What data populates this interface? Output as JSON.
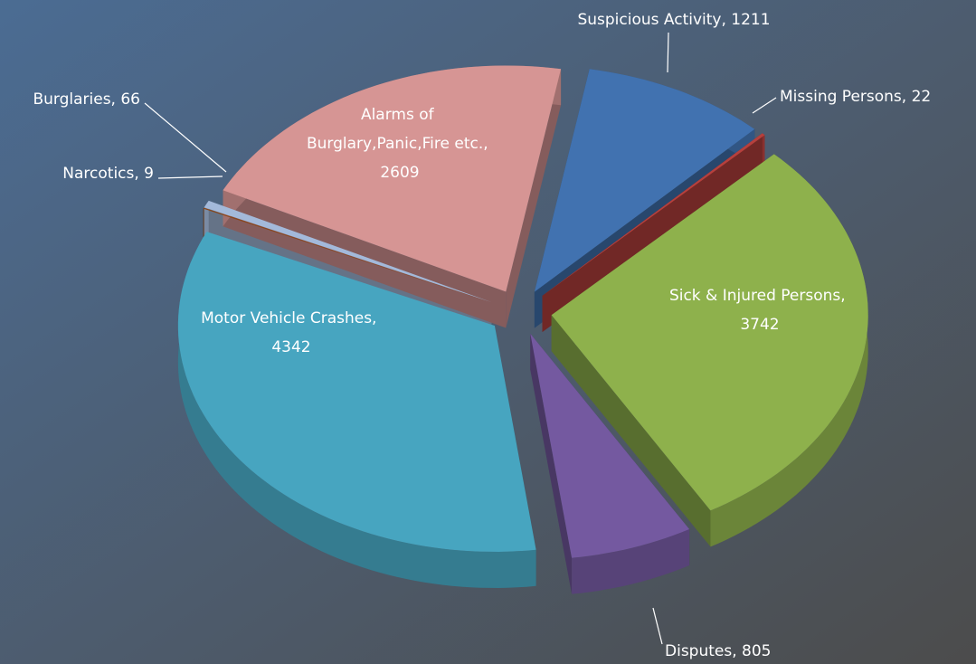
{
  "chart_data": {
    "type": "pie",
    "categories": [
      "Suspicious Activity",
      "Missing Persons",
      "Sick & Injured Persons",
      "Disputes",
      "Motor Vehicle Crashes",
      "Narcotics",
      "Burglaries",
      "Alarms of Burglary,Panic,Fire etc."
    ],
    "values": [
      1211,
      22,
      3742,
      805,
      4342,
      9,
      66,
      2609
    ],
    "value_labels": [
      "Suspicious Activity, 1211",
      "Missing Persons, 22",
      "Sick & Injured Persons, 3742",
      "Disputes, 805",
      "Motor Vehicle Crashes, 4342",
      "Narcotics, 9",
      "Burglaries, 66",
      "Alarms of Burglary,Panic,Fire etc., 2609"
    ],
    "colors": [
      "#4172b0",
      "#b6403d",
      "#8eb14c",
      "#7459a0",
      "#47a5c0",
      "#8b4515",
      "#a3b9da",
      "#d69594"
    ]
  }
}
